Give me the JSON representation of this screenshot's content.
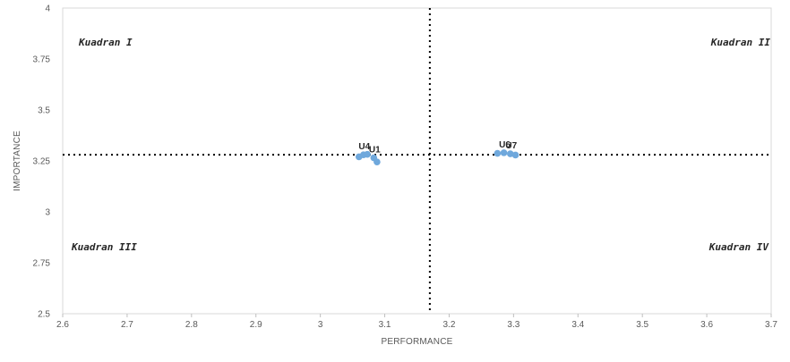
{
  "chart_data": {
    "type": "scatter",
    "xlabel": "PERFORMANCE",
    "ylabel": "IMPORTANCE",
    "xlim": [
      2.6,
      3.7
    ],
    "ylim": [
      2.5,
      4
    ],
    "x_ticks": [
      "2.6",
      "2.7",
      "2.8",
      "2.9",
      "3",
      "3.1",
      "3.2",
      "3.3",
      "3.4",
      "3.5",
      "3.6",
      "3.7"
    ],
    "y_ticks": [
      "2.5",
      "2.75",
      "3",
      "3.25",
      "3.5",
      "3.75",
      "4"
    ],
    "point_color": "#6fa8dc",
    "grid": "none",
    "reference_lines": {
      "x": 3.17,
      "y": 3.28
    },
    "quadrants": [
      {
        "label": "Kuadran I",
        "position": "top-left"
      },
      {
        "label": "Kuadran II",
        "position": "top-right"
      },
      {
        "label": "Kuadran III",
        "position": "bottom-left"
      },
      {
        "label": "Kuadran IV",
        "position": "bottom-right"
      }
    ],
    "points": [
      {
        "x": 3.06,
        "y": 3.27,
        "label": ""
      },
      {
        "x": 3.067,
        "y": 3.28,
        "label": "U4"
      },
      {
        "x": 3.073,
        "y": 3.282,
        "label": ""
      },
      {
        "x": 3.083,
        "y": 3.265,
        "label": "U1"
      },
      {
        "x": 3.088,
        "y": 3.245,
        "label": ""
      },
      {
        "x": 3.275,
        "y": 3.287,
        "label": ""
      },
      {
        "x": 3.285,
        "y": 3.29,
        "label": "U6"
      },
      {
        "x": 3.295,
        "y": 3.285,
        "label": "U7"
      },
      {
        "x": 3.303,
        "y": 3.279,
        "label": ""
      }
    ]
  }
}
